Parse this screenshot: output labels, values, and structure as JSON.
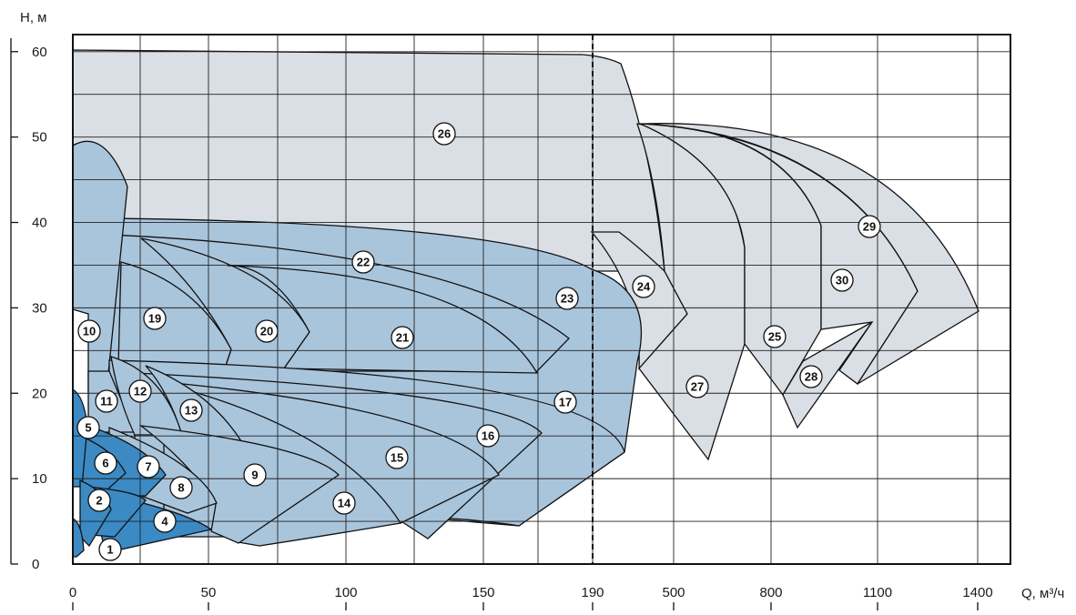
{
  "chart_data": {
    "type": "area",
    "title": "",
    "xlabel": "Q, м³/ч",
    "ylabel": "Н, м",
    "x_tick_labels": [
      "0",
      "50",
      "100",
      "150",
      "190",
      "500",
      "800",
      "1100",
      "1400"
    ],
    "y_tick_labels": [
      "0",
      "10",
      "20",
      "30",
      "40",
      "50",
      "60"
    ],
    "ylim": [
      0,
      62
    ],
    "x_scale": "piecewise: linear 0–190, compressed 190–1400",
    "grid": true,
    "divider_at_x": "190",
    "colors": {
      "light_grey": "#d9dfe5",
      "light_blue": "#a9c5dc",
      "dark_blue": "#3b8ac4",
      "grid": "#222222"
    },
    "zones": [
      {
        "id": "1",
        "label": "1",
        "label_q": 14,
        "label_h": 2.5,
        "color": "dark_blue"
      },
      {
        "id": "2",
        "label": "2",
        "label_q": 10,
        "label_h": 8.5,
        "color": "dark_blue"
      },
      {
        "id": "3",
        "label": "",
        "color": "dark_blue"
      },
      {
        "id": "4",
        "label": "4",
        "label_q": 34,
        "label_h": 5,
        "color": "dark_blue"
      },
      {
        "id": "5",
        "label": "5",
        "label_q": 6,
        "label_h": 16.7,
        "color": "dark_blue"
      },
      {
        "id": "6",
        "label": "6",
        "label_q": 12,
        "label_h": 12.5,
        "color": "dark_blue"
      },
      {
        "id": "7",
        "label": "7",
        "label_q": 28,
        "label_h": 12,
        "color": "dark_blue"
      },
      {
        "id": "8",
        "label": "8",
        "label_q": 40,
        "label_h": 9,
        "color": "light_blue"
      },
      {
        "id": "9",
        "label": "9",
        "label_q": 66,
        "label_h": 11,
        "color": "light_blue"
      },
      {
        "id": "10",
        "label": "10",
        "label_q": 6,
        "label_h": 28,
        "color": "light_blue"
      },
      {
        "id": "11",
        "label": "11",
        "label_q": 13,
        "label_h": 19.5,
        "color": "light_blue"
      },
      {
        "id": "12",
        "label": "12",
        "label_q": 25,
        "label_h": 21,
        "color": "light_blue"
      },
      {
        "id": "13",
        "label": "13",
        "label_q": 43,
        "label_h": 18.5,
        "color": "light_blue"
      },
      {
        "id": "14",
        "label": "14",
        "label_q": 99,
        "label_h": 7,
        "color": "light_blue"
      },
      {
        "id": "15",
        "label": "15",
        "label_q": 119,
        "label_h": 13.5,
        "color": "light_blue"
      },
      {
        "id": "16",
        "label": "16",
        "label_q": 152,
        "label_h": 16,
        "color": "light_blue"
      },
      {
        "id": "17",
        "label": "17",
        "label_q": 178,
        "label_h": 19.5,
        "color": "light_blue"
      },
      {
        "id": "18",
        "label": "",
        "color": "light_blue"
      },
      {
        "id": "19",
        "label": "19",
        "label_q": 30,
        "label_h": 29.5,
        "color": "light_blue"
      },
      {
        "id": "20",
        "label": "20",
        "label_q": 71,
        "label_h": 28,
        "color": "light_blue"
      },
      {
        "id": "21",
        "label": "21",
        "label_q": 120,
        "label_h": 27.5,
        "color": "light_blue"
      },
      {
        "id": "22",
        "label": "22",
        "label_q": 106,
        "label_h": 36.5,
        "color": "light_blue"
      },
      {
        "id": "23",
        "label": "23",
        "label_q": 180,
        "label_h": 32.5,
        "color": "light_blue"
      },
      {
        "id": "24",
        "label": "24",
        "label_q": "≈ 250",
        "label_h": 33.5,
        "color": "light_grey"
      },
      {
        "id": "25",
        "label": "25",
        "label_q": "≈ 800",
        "label_h": 26.5,
        "color": "light_grey"
      },
      {
        "id": "26",
        "label": "26",
        "label_q": 135,
        "label_h": 51.5,
        "color": "light_grey"
      },
      {
        "id": "27",
        "label": "27",
        "label_q": "≈ 600",
        "label_h": 22,
        "color": "light_grey"
      },
      {
        "id": "28",
        "label": "28",
        "label_q": "≈ 950",
        "label_h": 19,
        "color": "light_grey"
      },
      {
        "id": "29",
        "label": "29",
        "label_q": "≈ 1150",
        "label_h": 40.5,
        "color": "light_grey"
      },
      {
        "id": "30",
        "label": "30",
        "label_q": "≈ 1050",
        "label_h": 34,
        "color": "light_grey"
      }
    ]
  }
}
